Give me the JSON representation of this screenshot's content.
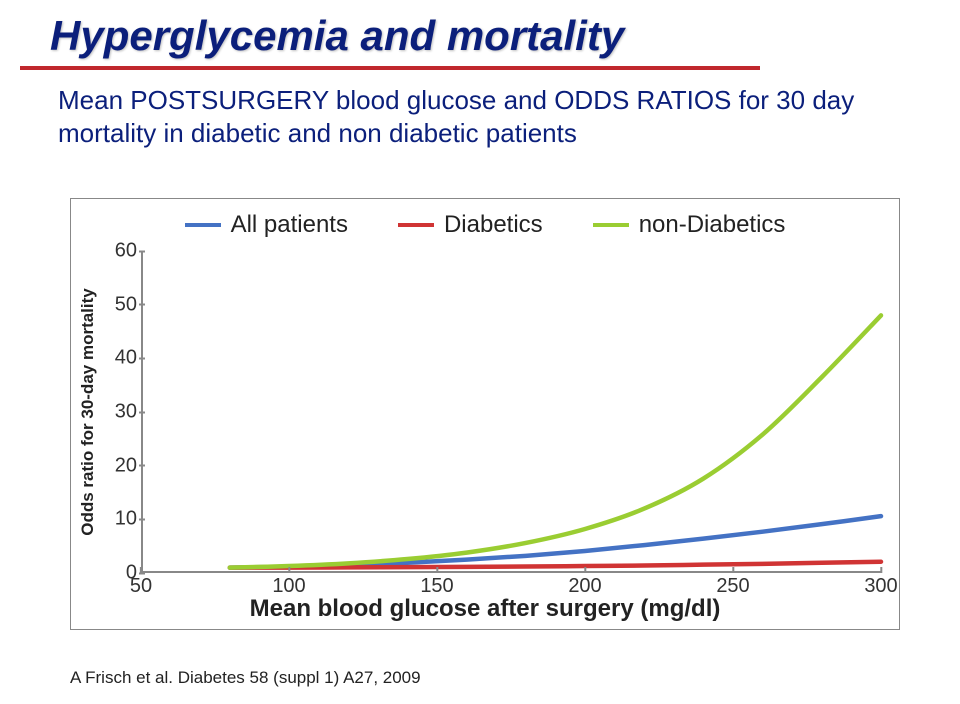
{
  "title": "Hyperglycemia and mortality",
  "subtitle": "Mean POSTSURGERY blood glucose and ODDS RATIOS for 30 day mortality in diabetic and non diabetic patients",
  "citation": "A Frisch et al. Diabetes 58 (suppl 1) A27, 2009",
  "rule_color": "#c0272d",
  "title_color": "#0b1f7b",
  "chart": {
    "type": "line",
    "background_color": "#ffffff",
    "border_color": "#888888",
    "y_axis_label": "Odds ratio for 30-day mortality",
    "x_axis_label": "Mean blood glucose after surgery (mg/dl)",
    "xlim": [
      50,
      300
    ],
    "ylim": [
      0,
      60
    ],
    "x_ticks": [
      50,
      100,
      150,
      200,
      250,
      300
    ],
    "y_ticks": [
      0,
      10,
      20,
      30,
      40,
      50,
      60
    ],
    "axis_fontsize": 20,
    "label_fontsize": 24,
    "y_label_fontsize": 17,
    "line_width": 4.5,
    "series": [
      {
        "name": "All patients",
        "color": "#4472c4",
        "x": [
          80,
          100,
          120,
          140,
          160,
          180,
          200,
          220,
          240,
          260,
          280,
          300
        ],
        "y": [
          1.0,
          1.2,
          1.5,
          1.9,
          2.5,
          3.2,
          4.1,
          5.2,
          6.4,
          7.7,
          9.1,
          10.6
        ]
      },
      {
        "name": "Diabetics",
        "color": "#d03434",
        "x": [
          80,
          100,
          120,
          140,
          160,
          180,
          200,
          220,
          240,
          260,
          280,
          300
        ],
        "y": [
          1.0,
          1.0,
          1.05,
          1.1,
          1.15,
          1.2,
          1.3,
          1.4,
          1.55,
          1.7,
          1.9,
          2.1
        ]
      },
      {
        "name": "non-Diabetics",
        "color": "#9acd32",
        "x": [
          80,
          100,
          120,
          140,
          160,
          180,
          200,
          220,
          240,
          260,
          280,
          300
        ],
        "y": [
          1.0,
          1.3,
          1.8,
          2.6,
          3.8,
          5.6,
          8.2,
          12.0,
          17.6,
          25.8,
          36.5,
          48.0
        ]
      }
    ],
    "legend": {
      "position": "top",
      "fontsize": 24
    }
  }
}
